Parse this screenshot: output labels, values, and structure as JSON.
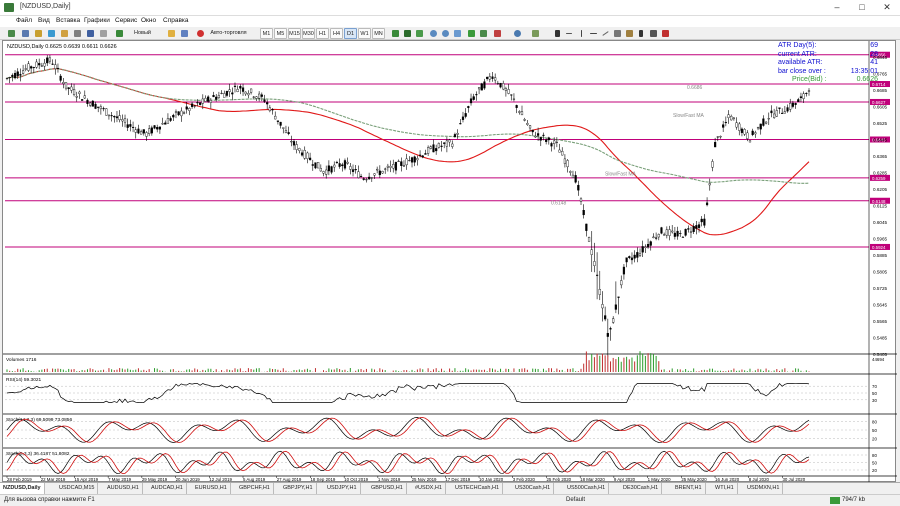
{
  "window": {
    "title": "[NZDUSD,Daily]"
  },
  "menu": [
    "Файл",
    "Вид",
    "Вставка",
    "Графики",
    "Сервис",
    "Окно",
    "Справка"
  ],
  "toolbar": {
    "new_order": "Новый ордер",
    "autotrade": "Авто-торговля",
    "timeframes": [
      "M1",
      "M5",
      "M15",
      "M30",
      "H1",
      "H4",
      "D1",
      "W1",
      "MN"
    ],
    "selected_timeframe": "D1"
  },
  "chart": {
    "header": "NZDUSD,Daily  0.6625 0.6639 0.6611 0.6626",
    "price_ticks": [
      "0.6845",
      "0.6765",
      "0.6685",
      "0.6605",
      "0.6525",
      "0.6445",
      "0.6365",
      "0.6285",
      "0.6205",
      "0.6125",
      "0.6045",
      "0.5965",
      "0.5885",
      "0.5805",
      "0.5725",
      "0.5645",
      "0.5565",
      "0.5485",
      "0.5405"
    ],
    "hline_labels": [
      "0.6856",
      "0.6714",
      "0.6627",
      "0.6445",
      "0.6259",
      "0.6148",
      "0.5924"
    ],
    "current_price_label": "0.6626",
    "date_ticks": [
      "28 Feb 2019",
      "22 Mar 2019",
      "15 Apr 2019",
      "7 May 2019",
      "29 May 2019",
      "20 Jun 2019",
      "12 Jul 2019",
      "5 Aug 2019",
      "27 Aug 2019",
      "18 Sep 2019",
      "10 Oct 2019",
      "1 Nov 2019",
      "25 Nov 2019",
      "17 Dec 2019",
      "10 Jan 2020",
      "3 Feb 2020",
      "25 Feb 2020",
      "18 Mar 2020",
      "9 Apr 2020",
      "1 May 2020",
      "25 May 2020",
      "16 Jun 2020",
      "8 Jul 2020",
      "30 Jul 2020"
    ],
    "annotations": {
      "sma_label_right": "Slow/Fast MA",
      "sma_label_mid": "Slow/Fast MA",
      "level_label_1": "0.6686",
      "level_label_2": "0.6148"
    }
  },
  "atr_panel": {
    "rows": [
      {
        "label": "ATR Day(5):",
        "value": "69"
      },
      {
        "label": "current ATR:",
        "value": "28"
      },
      {
        "label": "available ATR:",
        "value": "41"
      },
      {
        "label": "bar close over :",
        "value": "13:35:01"
      }
    ],
    "price_label": "Price(Bid) :",
    "price_value": "0.6626"
  },
  "subwindows": {
    "volumes": {
      "label": "Volumes 1716",
      "max_tick": "44694"
    },
    "rsi": {
      "label": "RSI(14) 59.3021",
      "ticks": [
        "70",
        "50",
        "30"
      ]
    },
    "stoch1": {
      "label": "Stoch(14,3,3) 69.5099 73.0856",
      "ticks": [
        "80",
        "50",
        "20"
      ]
    },
    "stoch2": {
      "label": "Stoch(5,3,3) 36.4187 51.8082",
      "ticks": [
        "80",
        "50",
        "20"
      ]
    }
  },
  "tabs": [
    "NZDUSD,Daily",
    "USDCAD,M15",
    "AUDUSD,H1",
    "AUDCAD,H1",
    "EURUSD,H1",
    "GBPCHF,H1",
    "GBPJPY,H1",
    "USDJPY,H1",
    "GBPUSD,H1",
    "#USDX,H1",
    "USTECHCash,H1",
    "US30Cash,H1",
    "US500Cash,H1",
    "DE30Cash,H1",
    "BRENT,H1",
    "WTI,H1",
    "USDMXN,H1"
  ],
  "status": {
    "help": "Для вызова справки нажмите F1",
    "profile": "Default",
    "traffic": "794/7 kb"
  },
  "colors": {
    "hline": "#c0007a",
    "ma_red": "#e01818",
    "ma_green": "#7aa07a",
    "stoch_red": "#d01010"
  }
}
